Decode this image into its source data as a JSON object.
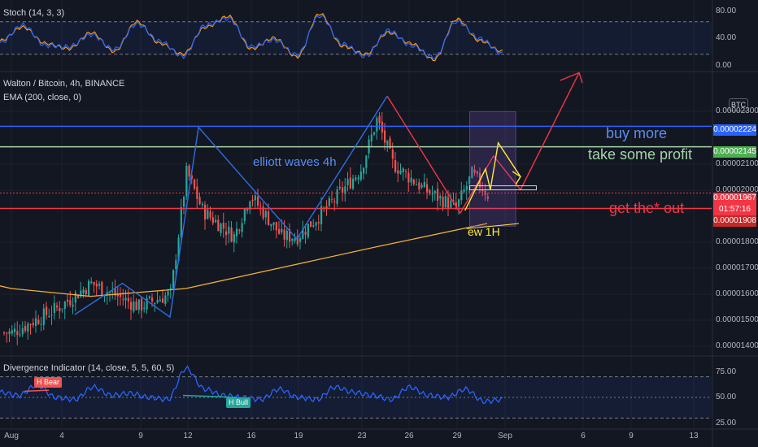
{
  "titles": {
    "stoch": "Stoch (14, 3, 3)",
    "main": "Walton / Bitcoin, 4h, BINANCE",
    "ema": "EMA (200, close, 0)",
    "divergence": "Divergence Indicator (14, close, 5, 5, 60, 5)"
  },
  "currency_button": "BTC",
  "stoch_axis": [
    "80.00",
    "40.00",
    "0.00"
  ],
  "div_axis": [
    "75.00",
    "50.00",
    "25.00"
  ],
  "price_axis": [
    "0.00002300",
    "0.00002100",
    "0.00002000",
    "0.00001800",
    "0.00001700",
    "0.00001600",
    "0.00001500",
    "0.00001400"
  ],
  "price_tags": [
    {
      "value": "0.00002224",
      "color": "#2962ff"
    },
    {
      "value": "0.00002145",
      "color": "#4caf50"
    },
    {
      "value": "0.00001967",
      "color": "#f23645"
    },
    {
      "value": "01:57:16",
      "color": "#f23645"
    },
    {
      "value": "0.00001908",
      "color": "#c62828"
    }
  ],
  "annotations": {
    "buy_more": "buy more",
    "take_profit": "take some profit",
    "get_out": "get the* out",
    "elliott": "elliott waves 4h",
    "ew1h": "ew 1H"
  },
  "badges": {
    "bear": "H Bear",
    "bull": "H Bull"
  },
  "x_labels": [
    "Aug",
    "4",
    "9",
    "12",
    "16",
    "19",
    "23",
    "26",
    "29",
    "Sep",
    "6",
    "9",
    "13"
  ],
  "colors": {
    "background": "#131722",
    "up": "#26a69a",
    "down": "#ef5350",
    "ema": "#f0b03a",
    "buy_line": "#2962ff",
    "profit_line": "#a5d6a7",
    "out_line": "#f23645",
    "wave": "#2f6de1"
  },
  "chart_data": [
    {
      "type": "candlestick",
      "title": "Walton / Bitcoin, 4h, BINANCE",
      "ylim": [
        1.35e-05,
        2.45e-05
      ],
      "horizontal_levels": [
        {
          "label": "buy more",
          "value": 2.224e-05
        },
        {
          "label": "take some profit",
          "value": 2.145e-05
        },
        {
          "label": "get the* out",
          "value": 1.908e-05
        }
      ],
      "last_price": 1.967e-05,
      "keypoints": [
        {
          "date": "Aug 1",
          "price": 1.43e-05
        },
        {
          "date": "Aug 4",
          "price": 1.53e-05
        },
        {
          "date": "Aug 6",
          "price": 1.62e-05
        },
        {
          "date": "Aug 9",
          "price": 1.53e-05
        },
        {
          "date": "Aug 11",
          "price": 1.58e-05
        },
        {
          "date": "Aug 12",
          "price": 2.05e-05
        },
        {
          "date": "Aug 13",
          "price": 1.9e-05
        },
        {
          "date": "Aug 15",
          "price": 1.8e-05
        },
        {
          "date": "Aug 16",
          "price": 1.96e-05
        },
        {
          "date": "Aug 18",
          "price": 1.8e-05
        },
        {
          "date": "Aug 19",
          "price": 1.8e-05
        },
        {
          "date": "Aug 21",
          "price": 1.92e-05
        },
        {
          "date": "Aug 23",
          "price": 2.06e-05
        },
        {
          "date": "Aug 24",
          "price": 2.25e-05
        },
        {
          "date": "Aug 25",
          "price": 2.08e-05
        },
        {
          "date": "Aug 27",
          "price": 1.98e-05
        },
        {
          "date": "Aug 29",
          "price": 1.91e-05
        },
        {
          "date": "Aug 30",
          "price": 2.04e-05
        },
        {
          "date": "Aug 31",
          "price": 1.96e-05
        }
      ],
      "ema": [
        {
          "date": "Aug 1",
          "value": 1.6e-05
        },
        {
          "date": "Aug 6",
          "value": 1.57e-05
        },
        {
          "date": "Aug 12",
          "value": 1.6e-05
        },
        {
          "date": "Aug 18",
          "value": 1.68e-05
        },
        {
          "date": "Aug 24",
          "value": 1.76e-05
        },
        {
          "date": "Aug 31",
          "value": 1.85e-05
        }
      ]
    },
    {
      "type": "line",
      "title": "Stoch (14, 3, 3)",
      "ylim": [
        0,
        100
      ],
      "series": [
        {
          "name": "Stoch (14, 3, 3)",
          "values": [
            45,
            70,
            40,
            30,
            60,
            25,
            80,
            40,
            20,
            70,
            90,
            30,
            50,
            15,
            95,
            35,
            20,
            60,
            40,
            10,
            85,
            45,
            25
          ]
        }
      ]
    },
    {
      "type": "line",
      "title": "Divergence Indicator (14, close, 5, 5, 60, 5)",
      "ylim": [
        25,
        75
      ],
      "series": [
        {
          "name": "Divergence Indicator (14, close, 5, 5, 60, 5)",
          "values": [
            55,
            52,
            62,
            50,
            48,
            60,
            52,
            54,
            50,
            48,
            78,
            58,
            52,
            50,
            48,
            58,
            50,
            48,
            60,
            55,
            52,
            48,
            60,
            52,
            50,
            58,
            46,
            48
          ]
        }
      ]
    }
  ]
}
